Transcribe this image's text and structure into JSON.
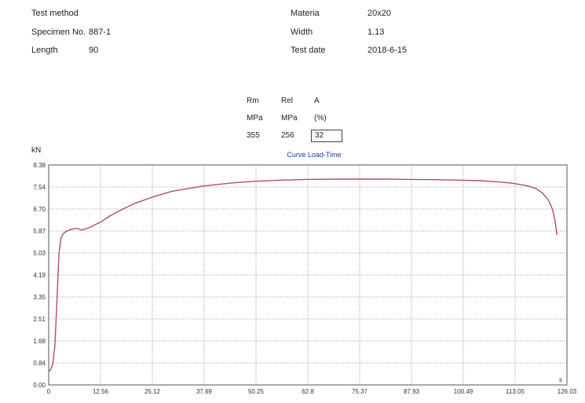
{
  "header": {
    "test_method_label": "Test method",
    "specimen_label": "Specimen No.",
    "specimen_value": "887-1",
    "length_label": "Length",
    "length_value": "90",
    "material_label": "Materia",
    "material_value": "20x20",
    "width_label": "Width",
    "width_value": "1.13",
    "test_date_label": "Test date",
    "test_date_value": "2018-6-15"
  },
  "results": {
    "headers": [
      "Rm",
      "Rel",
      "A"
    ],
    "units": [
      "MPa",
      "MPa",
      "(%)"
    ],
    "values": [
      "355",
      "256",
      "32"
    ]
  },
  "chart_data": {
    "type": "line",
    "title": "Curve Load-Time",
    "ylabel": "kN",
    "xlabel": "s",
    "ylim": [
      0,
      8.38
    ],
    "xlim": [
      0,
      126.03
    ],
    "y_ticks": [
      "0.00",
      "0.84",
      "1.68",
      "2.51",
      "3.35",
      "4.19",
      "5.03",
      "5.87",
      "6.70",
      "7.54",
      "8.38"
    ],
    "x_ticks": [
      "0",
      "12.56",
      "25.12",
      "37.69",
      "50.25",
      "62.8",
      "75.37",
      "87.93",
      "100.49",
      "113.05",
      "126.03"
    ],
    "series": [
      {
        "name": "",
        "color": "#b05060",
        "x": [
          0,
          0.5,
          1.0,
          1.5,
          2.0,
          2.5,
          3.0,
          3.5,
          4.0,
          5.0,
          6.0,
          7.0,
          8.0,
          9.0,
          10.0,
          11.0,
          12.56,
          15.0,
          18.0,
          21.0,
          25.12,
          30.0,
          37.69,
          45.0,
          50.25,
          56.0,
          62.8,
          70.0,
          75.37,
          82.0,
          87.93,
          94.0,
          100.49,
          105.0,
          109.0,
          113.05,
          116.5,
          118.5,
          120.0,
          121.5,
          122.5,
          123.2,
          123.6
        ],
        "y": [
          0.5,
          0.6,
          0.8,
          1.5,
          3.2,
          5.0,
          5.6,
          5.75,
          5.82,
          5.9,
          5.95,
          5.96,
          5.9,
          5.95,
          6.0,
          6.08,
          6.2,
          6.45,
          6.7,
          6.92,
          7.15,
          7.38,
          7.58,
          7.7,
          7.76,
          7.8,
          7.83,
          7.84,
          7.84,
          7.84,
          7.83,
          7.82,
          7.8,
          7.78,
          7.74,
          7.68,
          7.58,
          7.48,
          7.32,
          7.05,
          6.7,
          6.2,
          5.7
        ]
      }
    ]
  }
}
